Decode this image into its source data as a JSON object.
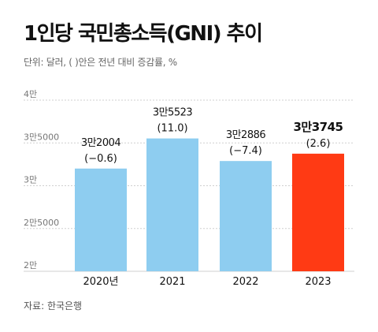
{
  "header": {
    "title": "1인당 국민총소득(GNI) 추이",
    "subtitle": "단위: 달러, ( )안은 전년 대비 증감률, %"
  },
  "footer": {
    "source": "자료: 한국은행"
  },
  "colors": {
    "bar_default": "#8ecdf0",
    "bar_highlight": "#ff3a14",
    "gridline": "#cfcfcf",
    "axis_label": "#777777"
  },
  "chart_data": {
    "type": "bar",
    "title": "1인당 국민총소득(GNI) 추이",
    "subtitle": "단위: 달러, ( )안은 전년 대비 증감률, %",
    "categories": [
      "2020년",
      "2021",
      "2022",
      "2023"
    ],
    "values": [
      32004,
      35523,
      32886,
      33745
    ],
    "value_labels": [
      "3만2004",
      "3만5523",
      "3만2886",
      "3만3745"
    ],
    "change_labels": [
      "(−0.6)",
      "(11.0)",
      "(−7.4)",
      "(2.6)"
    ],
    "highlight_index": 3,
    "ylim": [
      20000,
      40000
    ],
    "yticks": [
      {
        "value": 40000,
        "label": "4만"
      },
      {
        "value": 35000,
        "label": "3만5000"
      },
      {
        "value": 30000,
        "label": "3만"
      },
      {
        "value": 25000,
        "label": "2만5000"
      },
      {
        "value": 20000,
        "label": "2만"
      }
    ],
    "xlabel": "",
    "ylabel": "",
    "grid": true
  }
}
